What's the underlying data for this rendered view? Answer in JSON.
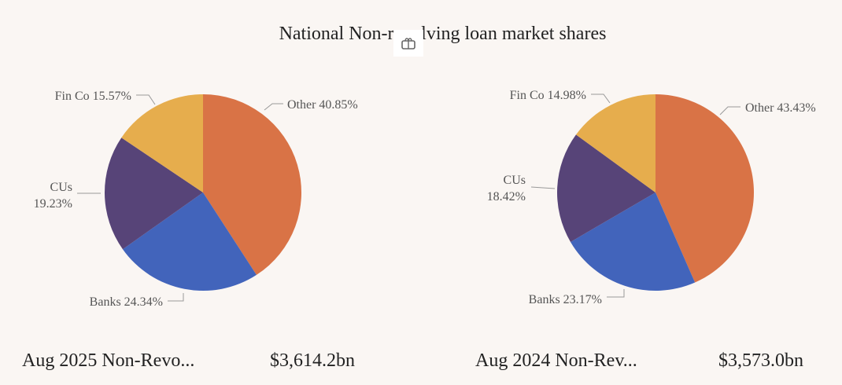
{
  "title": "National Non-revolving loan market shares",
  "overlay_icon": "copy-icon",
  "colors": {
    "Other": "#d97346",
    "Banks": "#4264bb",
    "CUs": "#574478",
    "Fin Co": "#e6ad4d",
    "background": "#faf6f3"
  },
  "chart_data": [
    {
      "type": "pie",
      "slices": [
        {
          "label": "Other",
          "value": 40.85,
          "text": "Other 40.85%"
        },
        {
          "label": "Banks",
          "value": 24.34,
          "text": "Banks 24.34%"
        },
        {
          "label": "CUs",
          "value": 19.23,
          "text": "CUs",
          "text2": "19.23%"
        },
        {
          "label": "Fin Co",
          "value": 15.57,
          "text": "Fin Co 15.57%"
        }
      ],
      "footer_label": "Aug 2025 Non-Revo...",
      "footer_value": "$3,614.2bn"
    },
    {
      "type": "pie",
      "slices": [
        {
          "label": "Other",
          "value": 43.43,
          "text": "Other 43.43%"
        },
        {
          "label": "Banks",
          "value": 23.17,
          "text": "Banks 23.17%"
        },
        {
          "label": "CUs",
          "value": 18.42,
          "text": "CUs",
          "text2": "18.42%"
        },
        {
          "label": "Fin Co",
          "value": 14.98,
          "text": "Fin Co 14.98%"
        }
      ],
      "footer_label": "Aug 2024 Non-Rev...",
      "footer_value": "$3,573.0bn"
    }
  ]
}
